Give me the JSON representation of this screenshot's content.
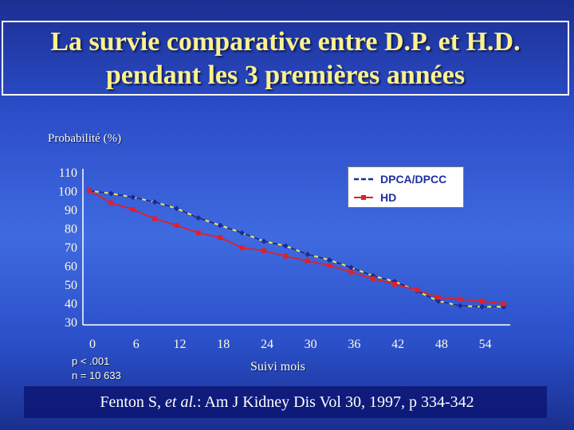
{
  "title": {
    "line1": "La survie comparative entre D.P. et H.D.",
    "line2": "pendant les 3 premières années"
  },
  "notes": {
    "p_value": "p < .001",
    "n": "n = 10 633"
  },
  "footer": {
    "authors": "Fenton S, ",
    "etal": "et al.",
    "rest": ": Am J Kidney Dis Vol 30, 1997, p 334-342"
  },
  "colors": {
    "series_dpca": "#1a2a9a",
    "series_hd": "#e0202a",
    "dpca_dash": "#f2ea55",
    "title": "#fbf28c",
    "axis": "#ffffff",
    "tick_label": "#fffce0"
  },
  "chart_data": {
    "type": "line",
    "title": "",
    "xlabel": "Suivi mois",
    "ylabel": "Probabilité (%)",
    "xlim": [
      0,
      57
    ],
    "ylim": [
      30,
      110
    ],
    "xticks": [
      0,
      6,
      12,
      18,
      24,
      30,
      36,
      42,
      48,
      54
    ],
    "yticks": [
      30,
      40,
      50,
      60,
      70,
      80,
      90,
      100,
      110
    ],
    "legend_position": "top-right",
    "grid": false,
    "series": [
      {
        "name": "DPCA/DPCC",
        "style": "dashed",
        "marker": "diamond",
        "x": [
          0,
          3,
          6,
          9,
          12,
          15,
          18,
          21,
          24,
          27,
          30,
          33,
          36,
          39,
          42,
          45,
          48,
          51,
          54,
          57
        ],
        "y": [
          100,
          98.5,
          96.5,
          94,
          90.5,
          85.5,
          81.5,
          77.5,
          73,
          70.5,
          66,
          63,
          59,
          54.5,
          51.5,
          46.5,
          41,
          38.5,
          38,
          38
        ]
      },
      {
        "name": "HD",
        "style": "solid",
        "marker": "square",
        "x": [
          0,
          3,
          6,
          9,
          12,
          15,
          18,
          21,
          24,
          27,
          30,
          33,
          36,
          39,
          42,
          45,
          48,
          51,
          54,
          57
        ],
        "y": [
          100,
          93.5,
          90,
          85,
          81.5,
          77.5,
          75,
          69.5,
          68,
          65,
          62.5,
          60,
          56.5,
          53,
          50,
          47,
          43,
          42,
          41,
          39.5
        ]
      }
    ]
  }
}
